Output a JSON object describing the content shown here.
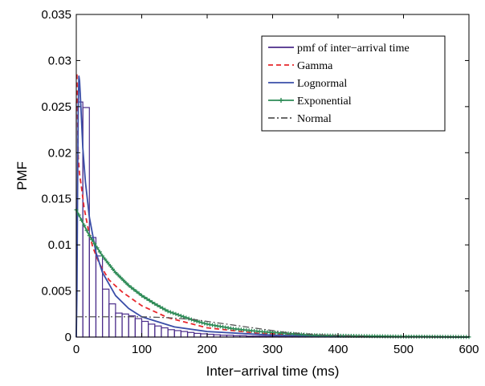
{
  "chart_data": {
    "type": "line",
    "xlabel": "Inter−arrival time (ms)",
    "ylabel": "PMF",
    "xlim": [
      0,
      600
    ],
    "ylim": [
      0,
      0.035
    ],
    "xticks": [
      "0",
      "100",
      "200",
      "300",
      "400",
      "500",
      "600"
    ],
    "yticks": [
      "0",
      "0.005",
      "0.01",
      "0.015",
      "0.02",
      "0.025",
      "0.03",
      "0.035"
    ],
    "grid": false,
    "legend_position": "top-right",
    "histogram": {
      "name": "pmf of inter−arrival time",
      "color": "#4b2c8a",
      "bin_width": 10,
      "bin_starts": [
        0,
        10,
        20,
        30,
        40,
        50,
        60,
        70,
        80,
        90,
        100,
        110,
        120,
        130,
        140,
        150,
        160,
        170,
        180,
        190,
        200,
        210,
        220,
        230,
        240,
        250,
        260,
        270,
        280,
        290,
        300,
        310,
        320,
        330,
        340,
        350,
        360,
        370,
        380,
        390,
        400,
        410,
        420,
        430,
        440,
        450,
        460,
        470,
        480,
        490,
        500,
        510,
        520,
        530,
        540,
        550,
        560,
        570,
        580,
        590
      ],
      "values": [
        0.0255,
        0.0249,
        0.0108,
        0.0088,
        0.0052,
        0.0036,
        0.0026,
        0.0025,
        0.0023,
        0.002,
        0.0017,
        0.0014,
        0.0012,
        0.001,
        0.0008,
        0.0007,
        0.0006,
        0.0005,
        0.0004,
        0.00035,
        0.0003,
        0.00025,
        0.0002,
        0.0002,
        0.00015,
        0.00015,
        0.0001,
        0.0001,
        0.0001,
        8e-05,
        7e-05,
        6e-05,
        5e-05,
        5e-05,
        4e-05,
        4e-05,
        3e-05,
        3e-05,
        3e-05,
        2e-05,
        2e-05,
        2e-05,
        2e-05,
        1e-05,
        1e-05,
        1e-05,
        1e-05,
        1e-05,
        1e-05,
        1e-05,
        1e-05,
        1e-05,
        1e-05,
        1e-05,
        1e-05,
        1e-05,
        1e-05,
        1e-05,
        1e-05,
        1e-05
      ]
    },
    "series": [
      {
        "name": "Gamma",
        "color": "#e8282d",
        "style": "dashed",
        "x": [
          1,
          3,
          5,
          8,
          12,
          18,
          25,
          35,
          50,
          70,
          100,
          140,
          200,
          280,
          400,
          600
        ],
        "y": [
          0.0285,
          0.0195,
          0.0177,
          0.0162,
          0.014,
          0.0118,
          0.0098,
          0.008,
          0.0062,
          0.0049,
          0.0034,
          0.0021,
          0.001,
          0.0004,
          0.0001,
          0.0
        ]
      },
      {
        "name": "Lognormal",
        "color": "#3a4ea8",
        "style": "solid",
        "x": [
          0,
          1,
          2,
          3,
          4,
          5,
          6,
          8,
          10,
          14,
          20,
          30,
          40,
          60,
          80,
          100,
          150,
          200,
          300,
          400,
          600
        ],
        "y": [
          0.0,
          0.005,
          0.016,
          0.025,
          0.0283,
          0.0278,
          0.0265,
          0.0235,
          0.0205,
          0.0168,
          0.013,
          0.0092,
          0.007,
          0.0045,
          0.0031,
          0.0022,
          0.0011,
          0.0006,
          0.0002,
          0.0001,
          0.0
        ]
      },
      {
        "name": "Exponential",
        "color": "#2e8b57",
        "style": "solid-plus",
        "x": [
          0,
          10,
          20,
          30,
          40,
          50,
          60,
          80,
          100,
          120,
          140,
          160,
          180,
          200,
          240,
          280,
          320,
          360,
          400,
          450,
          500,
          550,
          600
        ],
        "y": [
          0.0138,
          0.0124,
          0.011,
          0.0099,
          0.0088,
          0.0079,
          0.007,
          0.0056,
          0.0045,
          0.0036,
          0.0028,
          0.0023,
          0.0018,
          0.0014,
          0.0009,
          0.0006,
          0.0004,
          0.0002,
          0.00015,
          0.0001,
          5e-05,
          3e-05,
          1e-05
        ]
      },
      {
        "name": "Normal",
        "color": "#555555",
        "style": "dashdot",
        "x": [
          0,
          20,
          40,
          60,
          80,
          100,
          120,
          140,
          160,
          180,
          200,
          240,
          280,
          320,
          360,
          400,
          450
        ],
        "y": [
          0.0022,
          0.0022,
          0.0022,
          0.0022,
          0.0022,
          0.0022,
          0.00215,
          0.0021,
          0.002,
          0.0019,
          0.0017,
          0.0013,
          0.0009,
          0.0005,
          0.0003,
          0.00015,
          5e-05
        ]
      }
    ]
  }
}
